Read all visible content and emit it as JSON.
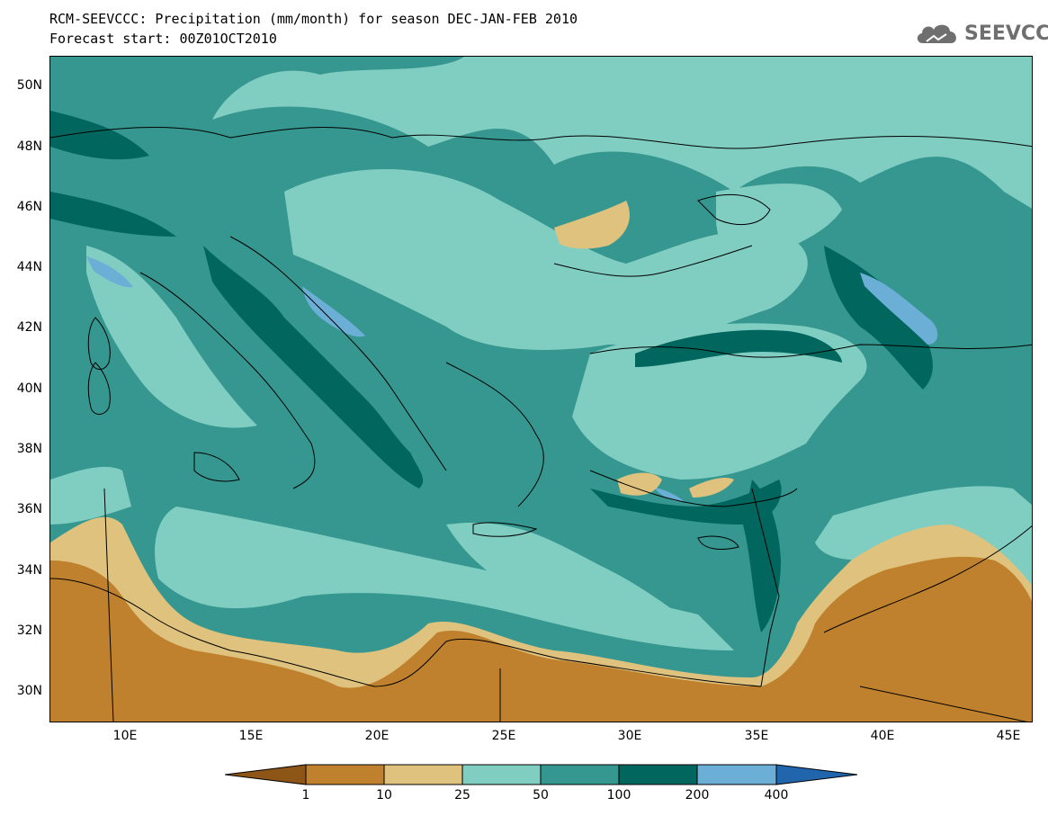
{
  "title": {
    "line1": "RCM-SEEVCCC: Precipitation (mm/month) for season DEC-JAN-FEB 2010",
    "line2": "Forecast start: 00Z01OCT2010"
  },
  "logo": {
    "text": "SEEVCCC",
    "icon": "cloud-icon",
    "color": "#6f6f6f"
  },
  "map": {
    "variable": "Precipitation (mm/month)",
    "lat_range": [
      29,
      51
    ],
    "lon_range": [
      7,
      46
    ],
    "lat_ticks": [
      "50N",
      "48N",
      "46N",
      "44N",
      "42N",
      "40N",
      "38N",
      "36N",
      "34N",
      "32N",
      "30N"
    ],
    "lon_ticks": [
      "10E",
      "15E",
      "20E",
      "25E",
      "30E",
      "35E",
      "40E",
      "45E"
    ]
  },
  "colorbar": {
    "levels": [
      "1",
      "10",
      "25",
      "50",
      "100",
      "200",
      "400"
    ],
    "colors": [
      "#8d5616",
      "#bf812d",
      "#dfc27d",
      "#80cdc1",
      "#35978f",
      "#01665e",
      "#6baed6",
      "#2166ac"
    ]
  }
}
